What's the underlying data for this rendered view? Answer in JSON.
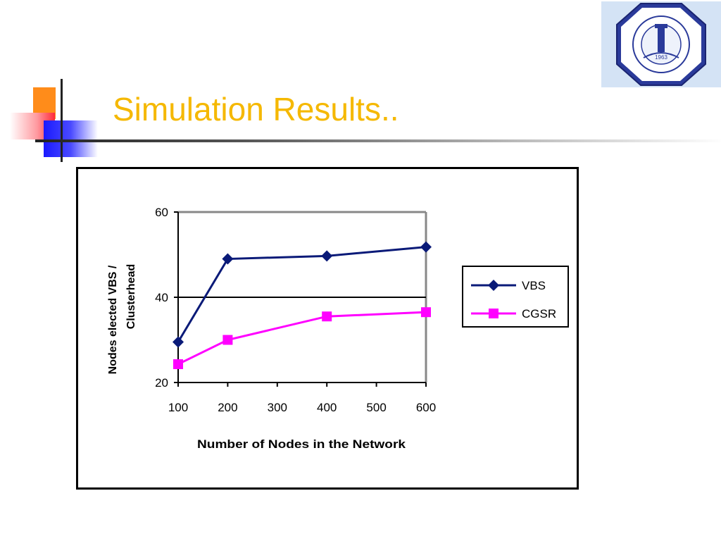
{
  "slide": {
    "title": "Simulation Results.."
  },
  "colors": {
    "title": "#f5b800",
    "vbs": "#0a1a78",
    "cgsr": "#ff00ff"
  },
  "logo": {
    "icon": "university-seal-icon",
    "year": "1963"
  },
  "chart_data": {
    "type": "line",
    "xlabel": "Number of Nodes in the Network",
    "ylabel": "Nodes elected VBS / Clusterhead",
    "ylabel_lines": [
      "Nodes elected VBS /",
      "Clusterhead"
    ],
    "x_ticks": [
      100,
      200,
      300,
      400,
      500,
      600
    ],
    "y_ticks": [
      20,
      40,
      60
    ],
    "xlim": [
      100,
      600
    ],
    "ylim": [
      20,
      60
    ],
    "gridlines": [
      40
    ],
    "legend_position": "right",
    "series": [
      {
        "name": "VBS",
        "marker": "diamond",
        "color": "#0a1a78",
        "x": [
          100,
          200,
          400,
          600
        ],
        "y": [
          29.5,
          49,
          49.7,
          51.8
        ]
      },
      {
        "name": "CGSR",
        "marker": "square",
        "color": "#ff00ff",
        "x": [
          100,
          200,
          400,
          600
        ],
        "y": [
          24.3,
          30,
          35.5,
          36.5
        ]
      }
    ]
  }
}
